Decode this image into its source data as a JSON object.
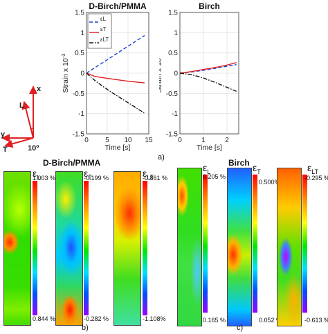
{
  "chart_data": [
    {
      "type": "line",
      "title": "D-Birch/PMMA",
      "xlabel": "Time [s]",
      "ylabel": "Strain x 10",
      "ylabel_exp": "-3",
      "xlim": [
        0,
        15
      ],
      "ylim": [
        -1.5,
        1.5
      ],
      "xticks": [
        0,
        5,
        10,
        15
      ],
      "yticks": [
        -1.5,
        -1,
        -0.5,
        0,
        0.5,
        1,
        1.5
      ],
      "grid": true,
      "legend": "top-left",
      "series": [
        {
          "name": "εL",
          "style": "dashed",
          "color": "#1f3fd6",
          "x": [
            0,
            14
          ],
          "y": [
            0,
            0.93
          ]
        },
        {
          "name": "εT",
          "style": "solid",
          "color": "#e02020",
          "x": [
            0,
            2,
            5,
            10,
            14
          ],
          "y": [
            0,
            -0.08,
            -0.13,
            -0.2,
            -0.24
          ]
        },
        {
          "name": "εLT",
          "style": "dashdot",
          "color": "#111111",
          "x": [
            0,
            2,
            4,
            6,
            8,
            10,
            12,
            14
          ],
          "y": [
            0,
            -0.18,
            -0.33,
            -0.47,
            -0.6,
            -0.73,
            -0.86,
            -0.99
          ]
        }
      ]
    },
    {
      "type": "line",
      "title": "Birch",
      "xlabel": "Time [s]",
      "ylabel": "Strain x 10",
      "ylabel_exp": "-3",
      "xlim": [
        0,
        2.5
      ],
      "ylim": [
        -1.5,
        1.5
      ],
      "xticks": [
        0,
        1,
        2
      ],
      "yticks": [
        -1.5,
        -1,
        -0.5,
        0,
        0.5,
        1,
        1.5
      ],
      "grid": true,
      "series": [
        {
          "name": "εL",
          "style": "dashed",
          "color": "#1f3fd6",
          "x": [
            0,
            0.5,
            1,
            1.5,
            2,
            2.4
          ],
          "y": [
            0,
            0.03,
            0.07,
            0.12,
            0.17,
            0.21
          ]
        },
        {
          "name": "εT",
          "style": "solid",
          "color": "#e02020",
          "x": [
            0,
            0.5,
            1,
            1.5,
            2,
            2.4
          ],
          "y": [
            0,
            0.04,
            0.09,
            0.14,
            0.2,
            0.26
          ]
        },
        {
          "name": "εLT",
          "style": "dashdot",
          "color": "#111111",
          "x": [
            0,
            0.5,
            1,
            1.5,
            2,
            2.4
          ],
          "y": [
            0,
            -0.04,
            -0.12,
            -0.23,
            -0.35,
            -0.45
          ]
        }
      ]
    }
  ],
  "labels": {
    "panel_a": "a)",
    "panel_b": "b)",
    "panel_c": "c)",
    "title_b": "D-Birch/PMMA",
    "title_c": "Birch"
  },
  "axes_diagram": {
    "x": "x",
    "L": "L",
    "y": "y",
    "T": "T",
    "angle": "10º"
  },
  "strain_maps": {
    "b": [
      {
        "symbol": "ε",
        "sub": "L",
        "max": "1.003 %",
        "min": "0.844 %"
      },
      {
        "symbol": "ε",
        "sub": "T",
        "max": "-0.199 %",
        "min": "-0.282 %"
      },
      {
        "symbol": "ε",
        "sub": "LT",
        "max": "-0.861 %",
        "min": "-1.108%"
      }
    ],
    "c": [
      {
        "symbol": "ε",
        "sub": "L",
        "max": "0.205 %",
        "min": "0.165 %"
      },
      {
        "symbol": "ε",
        "sub": "T",
        "max": "0.500%",
        "min": "0.052 %"
      },
      {
        "symbol": "ε",
        "sub": "LT",
        "max": "-0.295 %",
        "min": "-0.613 %"
      }
    ]
  }
}
